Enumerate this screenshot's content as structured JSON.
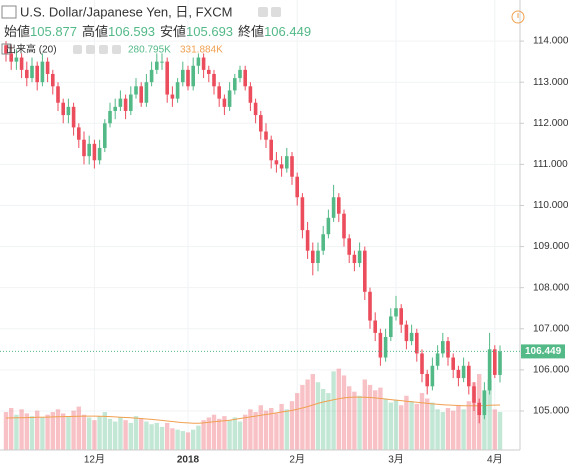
{
  "chart_data": {
    "type": "candlestick",
    "title": "U.S. Dollar/Japanese Yen, 日, FXCM",
    "ohlc_labels": [
      "始値",
      "高値",
      "安値",
      "終値"
    ],
    "volume_title": "出来高 (20)",
    "volume_value_label": "280.795K",
    "volume_ma_value_label": "331.884K",
    "up_color": "#53b987",
    "down_color": "#eb4d5c",
    "ma_color": "#f0a050",
    "grid": true,
    "ylim": [
      104.05,
      115.0
    ],
    "yticks": [
      {
        "value": 105,
        "label": "105.000"
      },
      {
        "value": 106,
        "label": "106.000"
      },
      {
        "value": 107,
        "label": "107.000"
      },
      {
        "value": 108,
        "label": "108.000"
      },
      {
        "value": 109,
        "label": "109.000"
      },
      {
        "value": 110,
        "label": "110.000"
      },
      {
        "value": 111,
        "label": "111.000"
      },
      {
        "value": 112,
        "label": "112.000"
      },
      {
        "value": 113,
        "label": "113.000"
      },
      {
        "value": 114,
        "label": "114.000"
      }
    ],
    "volume_ylim": [
      0,
      3319
    ],
    "categories": [
      null,
      null,
      null,
      null,
      null,
      null,
      null,
      null,
      null,
      null,
      null,
      null,
      null,
      null,
      null,
      null,
      null,
      "12月",
      null,
      null,
      null,
      null,
      null,
      null,
      null,
      null,
      null,
      null,
      null,
      null,
      null,
      null,
      null,
      null,
      null,
      "2018",
      null,
      null,
      null,
      null,
      null,
      null,
      null,
      null,
      null,
      null,
      null,
      null,
      null,
      null,
      null,
      null,
      null,
      null,
      null,
      null,
      "2月",
      null,
      null,
      null,
      null,
      null,
      null,
      null,
      null,
      null,
      null,
      null,
      null,
      null,
      null,
      null,
      null,
      null,
      null,
      "3月",
      null,
      null,
      null,
      null,
      null,
      null,
      null,
      null,
      null,
      null,
      null,
      null,
      null,
      null,
      null,
      null,
      null,
      null,
      "4月",
      null
    ],
    "open": [
      113.9,
      113.7,
      113.5,
      113.6,
      113.3,
      113.1,
      113.4,
      113.0,
      113.5,
      113.2,
      112.9,
      112.5,
      112.2,
      112.4,
      111.9,
      111.6,
      111.2,
      111.5,
      111.1,
      111.4,
      112.0,
      112.3,
      112.4,
      112.6,
      112.3,
      112.7,
      112.9,
      112.5,
      113.0,
      113.3,
      113.5,
      113.5,
      112.7,
      112.6,
      113.0,
      113.3,
      112.9,
      113.4,
      113.6,
      113.3,
      113.2,
      112.9,
      112.6,
      112.4,
      112.8,
      113.1,
      113.3,
      112.9,
      112.5,
      112.2,
      111.8,
      111.6,
      111.1,
      111.0,
      110.9,
      111.2,
      110.7,
      110.2,
      109.4,
      108.9,
      108.6,
      108.9,
      109.3,
      109.7,
      110.2,
      109.8,
      109.2,
      108.8,
      108.6,
      108.9,
      107.9,
      107.2,
      106.9,
      106.3,
      106.8,
      107.3,
      107.5,
      107.1,
      106.7,
      106.9,
      106.4,
      105.9,
      105.6,
      106.1,
      106.4,
      106.7,
      106.3,
      106.0,
      105.8,
      106.1,
      105.6,
      105.2,
      104.9,
      105.5,
      106.5,
      105.877
    ],
    "high": [
      114.0,
      113.9,
      113.8,
      113.7,
      113.5,
      113.6,
      113.5,
      113.7,
      113.6,
      113.3,
      113.0,
      112.6,
      112.6,
      112.5,
      112.0,
      111.8,
      111.7,
      111.6,
      111.6,
      112.1,
      112.5,
      112.6,
      112.8,
      112.7,
      112.9,
      113.1,
      113.0,
      113.2,
      113.5,
      113.7,
      113.7,
      113.6,
      112.9,
      113.1,
      113.5,
      113.4,
      113.6,
      113.7,
      113.7,
      113.4,
      113.3,
      113.0,
      112.7,
      113.0,
      113.2,
      113.4,
      113.4,
      113.0,
      112.6,
      112.3,
      112.0,
      111.7,
      111.3,
      111.2,
      111.4,
      111.3,
      110.8,
      110.3,
      109.6,
      109.1,
      109.1,
      109.5,
      109.9,
      110.5,
      110.3,
      109.9,
      109.3,
      108.9,
      109.1,
      109.0,
      108.0,
      107.4,
      107.0,
      107.0,
      107.5,
      107.8,
      107.6,
      107.2,
      107.1,
      107.0,
      106.5,
      106.0,
      106.3,
      106.6,
      106.9,
      106.8,
      106.4,
      106.1,
      106.3,
      106.2,
      105.7,
      105.3,
      105.7,
      106.9,
      106.6,
      106.593
    ],
    "low": [
      113.5,
      113.3,
      113.3,
      113.1,
      112.9,
      113.0,
      112.8,
      112.9,
      113.0,
      112.7,
      112.3,
      112.0,
      112.0,
      111.7,
      111.4,
      111.0,
      111.0,
      110.9,
      111.0,
      111.3,
      111.9,
      112.1,
      112.3,
      112.1,
      112.2,
      112.6,
      112.4,
      112.4,
      112.9,
      113.2,
      113.3,
      112.5,
      112.4,
      112.5,
      112.9,
      112.8,
      112.8,
      113.2,
      113.1,
      113.0,
      112.7,
      112.4,
      112.2,
      112.3,
      112.7,
      113.0,
      112.8,
      112.3,
      112.0,
      111.6,
      111.4,
      110.9,
      110.8,
      110.7,
      110.8,
      110.5,
      110.0,
      109.2,
      108.7,
      108.3,
      108.4,
      108.8,
      109.2,
      109.6,
      109.6,
      109.0,
      108.6,
      108.4,
      108.5,
      107.7,
      107.0,
      106.7,
      106.1,
      106.2,
      106.7,
      107.2,
      106.9,
      106.5,
      106.6,
      106.2,
      105.7,
      105.4,
      105.5,
      106.0,
      106.3,
      106.1,
      105.8,
      105.6,
      105.7,
      105.4,
      105.0,
      104.7,
      104.8,
      105.4,
      105.8,
      105.693
    ],
    "close": [
      113.7,
      113.5,
      113.6,
      113.3,
      113.1,
      113.4,
      113.0,
      113.5,
      113.2,
      112.9,
      112.5,
      112.2,
      112.4,
      111.9,
      111.6,
      111.2,
      111.5,
      111.1,
      111.4,
      112.0,
      112.3,
      112.4,
      112.6,
      112.3,
      112.7,
      112.9,
      112.5,
      113.0,
      113.3,
      113.5,
      113.5,
      112.7,
      112.6,
      113.0,
      113.3,
      112.9,
      113.4,
      113.6,
      113.3,
      113.2,
      112.9,
      112.6,
      112.4,
      112.8,
      113.1,
      113.3,
      112.9,
      112.5,
      112.2,
      111.8,
      111.6,
      111.1,
      111.0,
      110.9,
      111.2,
      110.7,
      110.2,
      109.4,
      108.9,
      108.6,
      108.9,
      109.3,
      109.7,
      110.2,
      109.8,
      109.2,
      108.8,
      108.6,
      108.9,
      107.9,
      107.2,
      106.9,
      106.3,
      106.8,
      107.3,
      107.5,
      107.1,
      106.7,
      106.9,
      106.4,
      105.9,
      105.6,
      106.1,
      106.4,
      106.7,
      106.3,
      106.0,
      105.8,
      106.1,
      105.6,
      105.2,
      104.9,
      105.5,
      106.5,
      105.877,
      106.449
    ],
    "volume": [
      280,
      310,
      260,
      300,
      270,
      250,
      290,
      240,
      260,
      280,
      300,
      270,
      250,
      290,
      320,
      260,
      240,
      220,
      250,
      280,
      230,
      210,
      240,
      220,
      200,
      250,
      230,
      210,
      190,
      200,
      170,
      200,
      160,
      150,
      140,
      130,
      150,
      180,
      220,
      240,
      260,
      230,
      250,
      220,
      240,
      210,
      260,
      300,
      280,
      330,
      290,
      310,
      270,
      340,
      300,
      360,
      420,
      480,
      520,
      560,
      500,
      450,
      420,
      580,
      600,
      550,
      470,
      430,
      400,
      520,
      480,
      440,
      460,
      380,
      350,
      370,
      330,
      400,
      360,
      340,
      420,
      380,
      350,
      300,
      280,
      310,
      290,
      330,
      300,
      360,
      500,
      560,
      440,
      520,
      300,
      280.795
    ],
    "volume_ma": [
      236,
      237,
      238,
      238,
      239,
      240,
      241,
      242,
      243,
      244,
      245,
      246,
      247,
      248,
      249,
      250,
      250,
      250,
      249,
      248,
      246,
      244,
      242,
      240,
      238,
      235,
      232,
      229,
      226,
      222,
      218,
      214,
      210,
      206,
      202,
      200,
      198,
      198,
      200,
      204,
      208,
      212,
      216,
      220,
      226,
      232,
      238,
      244,
      250,
      256,
      262,
      268,
      274,
      280,
      286,
      292,
      300,
      310,
      320,
      332,
      344,
      354,
      362,
      370,
      378,
      384,
      388,
      390,
      390,
      389,
      387,
      384,
      380,
      376,
      372,
      368,
      364,
      360,
      356,
      352,
      348,
      344,
      340,
      337,
      334,
      332,
      330,
      328,
      327,
      326,
      326,
      327,
      328,
      330,
      331,
      331.884
    ]
  }
}
